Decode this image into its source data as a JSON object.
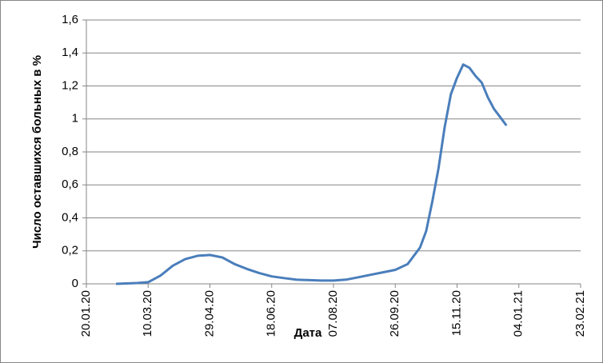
{
  "chart_data": {
    "type": "line",
    "y_label": "Число оставшихся больных в %",
    "x_label": "Дата",
    "x": [
      "13.02.20",
      "01.03.20",
      "10.03.20",
      "20.03.20",
      "30.03.20",
      "09.04.20",
      "19.04.20",
      "29.04.20",
      "09.05.20",
      "19.05.20",
      "29.05.20",
      "08.06.20",
      "18.06.20",
      "28.06.20",
      "08.07.20",
      "28.07.20",
      "07.08.20",
      "17.08.20",
      "27.08.20",
      "06.09.20",
      "16.09.20",
      "26.09.20",
      "06.10.20",
      "16.10.20",
      "21.10.20",
      "26.10.20",
      "31.10.20",
      "05.11.20",
      "10.11.20",
      "15.11.20",
      "20.11.20",
      "25.11.20",
      "30.11.20",
      "05.12.20",
      "10.12.20",
      "15.12.20",
      "20.12.20",
      "25.12.20"
    ],
    "series": [
      {
        "color": "#4a7ebb",
        "values": [
          0,
          0.005,
          0.01,
          0.05,
          0.11,
          0.15,
          0.17,
          0.175,
          0.16,
          0.12,
          0.09,
          0.065,
          0.045,
          0.035,
          0.025,
          0.02,
          0.02,
          0.025,
          0.04,
          0.055,
          0.07,
          0.085,
          0.12,
          0.22,
          0.32,
          0.5,
          0.7,
          0.95,
          1.15,
          1.25,
          1.33,
          1.31,
          1.26,
          1.22,
          1.13,
          1.06,
          1.01,
          0.96
        ]
      }
    ],
    "xlim": [
      "20.01.20",
      "23.02.21"
    ],
    "xticks": [
      "20.01.20",
      "10.03.20",
      "29.04.20",
      "18.06.20",
      "07.08.20",
      "26.09.20",
      "15.11.20",
      "04.01.21",
      "23.02.21"
    ],
    "ylim": [
      0,
      1.6
    ],
    "yticks": [
      0,
      {
        "value": 0.2,
        "label": "0,2"
      },
      {
        "value": 0.4,
        "label": "0,4"
      },
      {
        "value": 0.6,
        "label": "0,6"
      },
      {
        "value": 0.8,
        "label": "0,8"
      },
      1,
      {
        "value": 1.2,
        "label": "1,2"
      },
      {
        "value": 1.4,
        "label": "1,4"
      },
      {
        "value": 1.6,
        "label": "1,6"
      }
    ],
    "grid": true
  }
}
